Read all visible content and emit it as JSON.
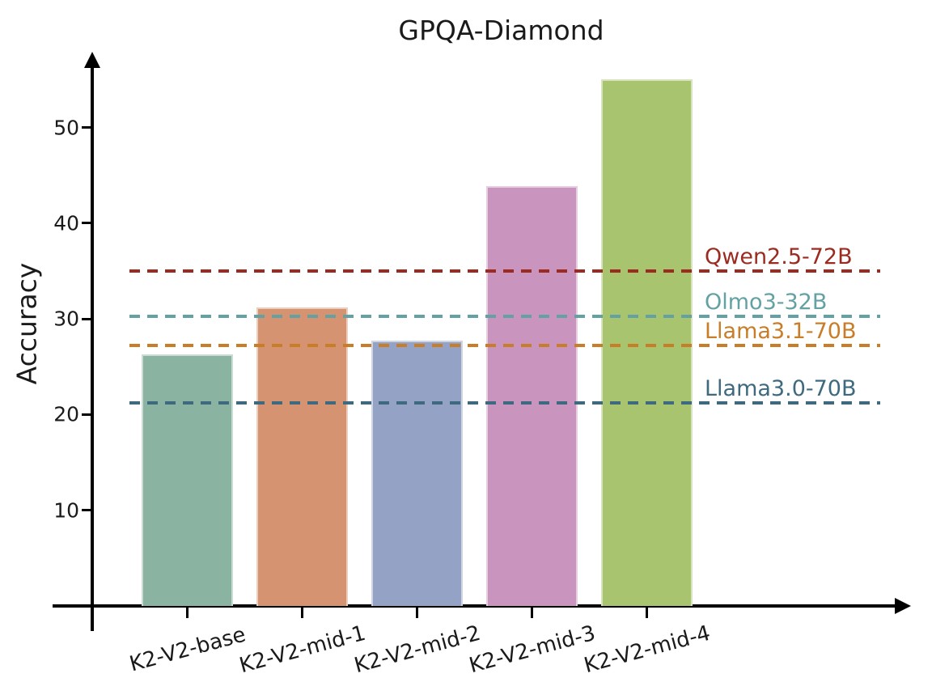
{
  "chart_data": {
    "type": "bar",
    "title": "GPQA-Diamond",
    "xlabel": "",
    "ylabel": "Accuracy",
    "categories": [
      "K2-V2-base",
      "K2-V2-mid-1",
      "K2-V2-mid-2",
      "K2-V2-mid-3",
      "K2-V2-mid-4"
    ],
    "values": [
      26.3,
      31.2,
      27.7,
      43.9,
      55.0
    ],
    "bar_colors": [
      "#8ab4a1",
      "#d59372",
      "#94a3c5",
      "#c994bd",
      "#a9c46e"
    ],
    "yticks": [
      10,
      20,
      30,
      40,
      50
    ],
    "ylim": [
      0,
      57.5
    ],
    "grid": false,
    "legend_position": "none",
    "reference_lines": [
      {
        "label": "Qwen2.5-72B",
        "value": 35.0,
        "color": "#9b2b20"
      },
      {
        "label": "Olmo3-32B",
        "value": 30.3,
        "color": "#64a1a3"
      },
      {
        "label": "Llama3.1-70B",
        "value": 27.2,
        "color": "#c87d28"
      },
      {
        "label": "Llama3.0-70B",
        "value": 21.2,
        "color": "#3e697f"
      }
    ],
    "axis_color": "#000000",
    "title_color": "#1a1a1a"
  }
}
